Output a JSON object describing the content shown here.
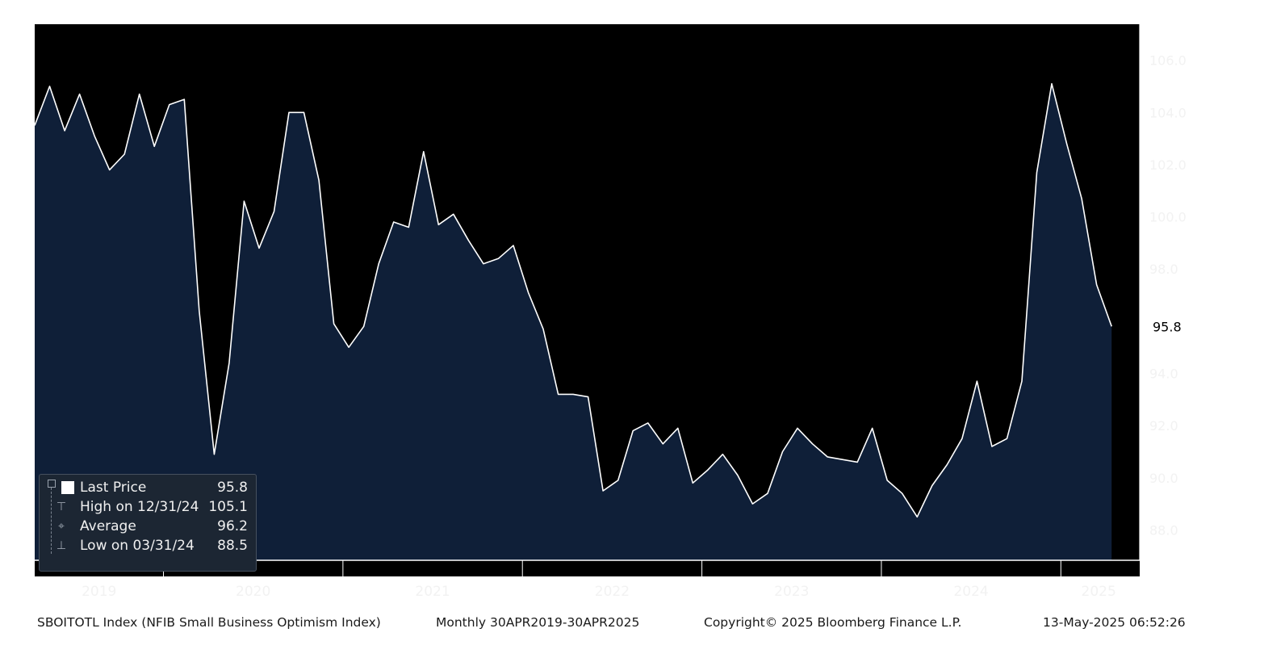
{
  "chart_data": {
    "type": "area",
    "title": "",
    "xlabel": "",
    "ylabel": "",
    "x": [
      "2019-04",
      "2019-05",
      "2019-06",
      "2019-07",
      "2019-08",
      "2019-09",
      "2019-10",
      "2019-11",
      "2019-12",
      "2020-01",
      "2020-02",
      "2020-03",
      "2020-04",
      "2020-05",
      "2020-06",
      "2020-07",
      "2020-08",
      "2020-09",
      "2020-10",
      "2020-11",
      "2020-12",
      "2021-01",
      "2021-02",
      "2021-03",
      "2021-04",
      "2021-05",
      "2021-06",
      "2021-07",
      "2021-08",
      "2021-09",
      "2021-10",
      "2021-11",
      "2021-12",
      "2022-01",
      "2022-02",
      "2022-03",
      "2022-04",
      "2022-05",
      "2022-06",
      "2022-07",
      "2022-08",
      "2022-09",
      "2022-10",
      "2022-11",
      "2022-12",
      "2023-01",
      "2023-02",
      "2023-03",
      "2023-04",
      "2023-05",
      "2023-06",
      "2023-07",
      "2023-08",
      "2023-09",
      "2023-10",
      "2023-11",
      "2023-12",
      "2024-01",
      "2024-02",
      "2024-03",
      "2024-04",
      "2024-05",
      "2024-06",
      "2024-07",
      "2024-08",
      "2024-09",
      "2024-10",
      "2024-11",
      "2024-12",
      "2025-01",
      "2025-02",
      "2025-03",
      "2025-04"
    ],
    "series": [
      {
        "values": [
          103.5,
          105.0,
          103.3,
          104.7,
          103.1,
          101.8,
          102.4,
          104.7,
          102.7,
          104.3,
          104.5,
          96.4,
          90.9,
          94.4,
          100.6,
          98.8,
          100.2,
          104.0,
          104.0,
          101.4,
          95.9,
          95.0,
          95.8,
          98.2,
          99.8,
          99.6,
          102.5,
          99.7,
          100.1,
          99.1,
          98.2,
          98.4,
          98.9,
          97.1,
          95.7,
          93.2,
          93.2,
          93.1,
          89.5,
          89.9,
          91.8,
          92.1,
          91.3,
          91.9,
          89.8,
          90.3,
          90.9,
          90.1,
          89.0,
          89.4,
          91.0,
          91.9,
          91.3,
          90.8,
          90.7,
          90.6,
          91.9,
          89.9,
          89.4,
          88.5,
          89.7,
          90.5,
          91.5,
          93.7,
          91.2,
          91.5,
          93.7,
          101.7,
          105.1,
          102.8,
          100.7,
          97.4,
          95.8
        ],
        "color": "#ffffff",
        "fill": "#0f1f38"
      }
    ],
    "ylim": [
      86.9,
      106.7
    ],
    "y_ticks": [
      "106.0",
      "104.0",
      "102.0",
      "100.0",
      "98.0",
      "96.0",
      "94.0",
      "92.0",
      "90.0",
      "88.0"
    ],
    "year_labels": [
      "2019",
      "2020",
      "2021",
      "2022",
      "2023",
      "2024",
      "2025"
    ],
    "last_value_label": "95.8",
    "grid": false,
    "legend_position": "bottom-left",
    "background": "#000000",
    "axis_color": "#ffffff"
  },
  "legend": {
    "rows": [
      {
        "label": "Last Price",
        "value": "95.8"
      },
      {
        "label": "High on 12/31/24",
        "value": "105.1"
      },
      {
        "label": "Average",
        "value": "96.2"
      },
      {
        "label": "Low on 03/31/24",
        "value": "88.5"
      }
    ]
  },
  "footer": {
    "ticker": "SBOITOTL Index (NFIB Small Business Optimism Index)",
    "period": "Monthly 30APR2019-30APR2025",
    "copyright": "Copyright© 2025 Bloomberg Finance L.P.",
    "timestamp": "13-May-2025 06:52:26"
  }
}
